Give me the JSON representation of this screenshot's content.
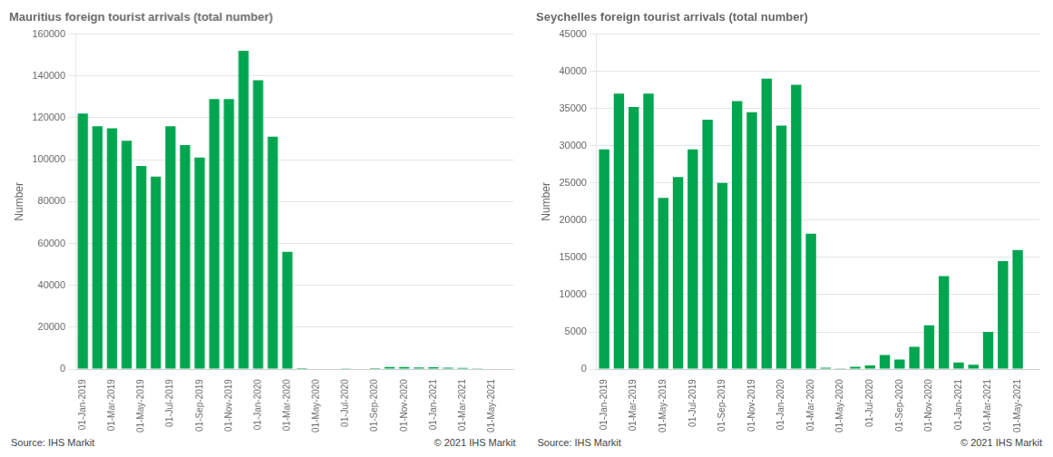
{
  "chart_data": [
    {
      "type": "bar",
      "title": "Mauritius foreign tourist arrivals (total number)",
      "ylabel": "Number",
      "categories": [
        "01-Jan-2019",
        null,
        "01-Mar-2019",
        null,
        "01-May-2019",
        null,
        "01-Jul-2019",
        null,
        "01-Sep-2019",
        null,
        "01-Nov-2019",
        null,
        "01-Jan-2020",
        null,
        "01-Mar-2020",
        null,
        "01-May-2020",
        null,
        "01-Jul-2020",
        null,
        "01-Sep-2020",
        null,
        "01-Nov-2020",
        null,
        "01-Jan-2021",
        null,
        "01-Mar-2021",
        null,
        "01-May-2021",
        null
      ],
      "values": [
        122000,
        116000,
        115000,
        109000,
        97000,
        92000,
        116000,
        107000,
        101000,
        129000,
        129000,
        152000,
        138000,
        111000,
        56000,
        500,
        200,
        300,
        400,
        300,
        500,
        1000,
        1000,
        800,
        900,
        700,
        600,
        400,
        300,
        200
      ],
      "color": "#00a550",
      "ylim": [
        0,
        160000
      ],
      "yticks": [
        0,
        20000,
        40000,
        60000,
        80000,
        100000,
        120000,
        140000,
        160000
      ],
      "grid": true,
      "annotations": [
        "Source:  IHS Markit",
        "© 2021  IHS Markit"
      ]
    },
    {
      "type": "bar",
      "title": "Seychelles foreign tourist arrivals (total number)",
      "ylabel": "Number",
      "categories": [
        "01-Jan-2019",
        null,
        "01-Mar-2019",
        null,
        "01-May-2019",
        null,
        "01-Jul-2019",
        null,
        "01-Sep-2019",
        null,
        "01-Nov-2019",
        null,
        "01-Jan-2020",
        null,
        "01-Mar-2020",
        null,
        "01-May-2020",
        null,
        "01-Jul-2020",
        null,
        "01-Sep-2020",
        null,
        "01-Nov-2020",
        null,
        "01-Jan-2021",
        null,
        "01-Mar-2021",
        null,
        "01-May-2021",
        null
      ],
      "values": [
        29500,
        37000,
        35200,
        37000,
        23000,
        25800,
        29500,
        33500,
        25000,
        36000,
        34500,
        39000,
        32700,
        38200,
        18200,
        200,
        100,
        300,
        500,
        1900,
        1300,
        3000,
        5900,
        12500,
        900,
        600,
        5000,
        14500,
        16000,
        0
      ],
      "color": "#00a550",
      "ylim": [
        0,
        45000
      ],
      "yticks": [
        0,
        5000,
        10000,
        15000,
        20000,
        25000,
        30000,
        35000,
        40000,
        45000
      ],
      "grid": true,
      "annotations": [
        "Source:  IHS Markit",
        "© 2021  IHS Markit"
      ]
    }
  ]
}
